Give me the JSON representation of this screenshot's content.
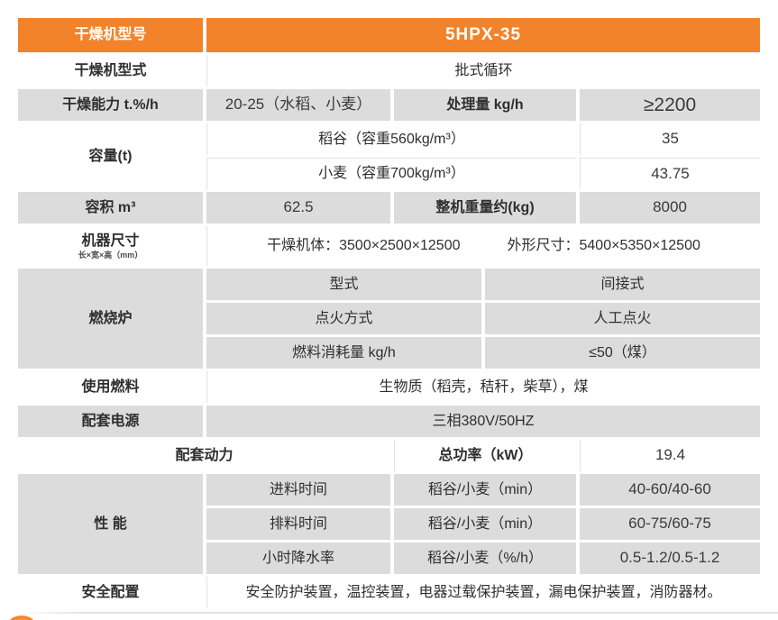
{
  "colors": {
    "accent_orange": "#F2832A",
    "row_gray": "#DCDCDC",
    "header_text": "#FFFFFF",
    "body_text": "#2F2F2F"
  },
  "table": {
    "model_row": {
      "label": "干燥机型号",
      "value": "5HPX-35"
    },
    "type_row": {
      "label": "干燥机型式",
      "value": "批式循环"
    },
    "capability_row": {
      "label": "干燥能力 t.%/h",
      "value": "20-25（水稻、小麦）",
      "sub_label": "处理量 kg/h",
      "sub_value": "≥2200"
    },
    "capacity_row": {
      "label": "容量(t)",
      "rows": [
        {
          "name": "稻谷（容重560kg/m³）",
          "value": "35"
        },
        {
          "name": "小麦（容重700kg/m³）",
          "value": "43.75"
        }
      ]
    },
    "volume_row": {
      "label": "容积 m³",
      "value": "62.5",
      "sub_label": "整机重量约(kg)",
      "sub_value": "8000"
    },
    "dimensions_row": {
      "label": "机器尺寸",
      "label_note": "长×宽×高（mm）",
      "body": "干燥机体：3500×2500×12500",
      "outline": "外形尺寸：5400×5350×12500"
    },
    "furnace_row": {
      "label": "燃烧炉",
      "rows": [
        {
          "name": "型式",
          "value": "间接式"
        },
        {
          "name": "点火方式",
          "value": "人工点火"
        },
        {
          "name": "燃料消耗量 kg/h",
          "value": "≤50（煤）"
        }
      ]
    },
    "fuel_row": {
      "label": "使用燃料",
      "value": "生物质（稻壳，秸秆，柴草），煤"
    },
    "power_supply_row": {
      "label": "配套电源",
      "value": "三相380V/50HZ"
    },
    "power_row": {
      "label": "配套动力",
      "sub_label": "总功率（kW）",
      "sub_value": "19.4"
    },
    "performance_row": {
      "label": "性 能",
      "rows": [
        {
          "name": "进料时间",
          "spec": "稻谷/小麦（min）",
          "value": "40-60/40-60"
        },
        {
          "name": "排料时间",
          "spec": "稻谷/小麦（min）",
          "value": "60-75/60-75"
        },
        {
          "name": "小时降水率",
          "spec": "稻谷/小麦（%/h）",
          "value": "0.5-1.2/0.5-1.2"
        }
      ]
    },
    "safety_row": {
      "label": "安全配置",
      "value": "安全防护装置，温控装置，电器过载保护装置，漏电保护装置，消防器材。"
    }
  }
}
